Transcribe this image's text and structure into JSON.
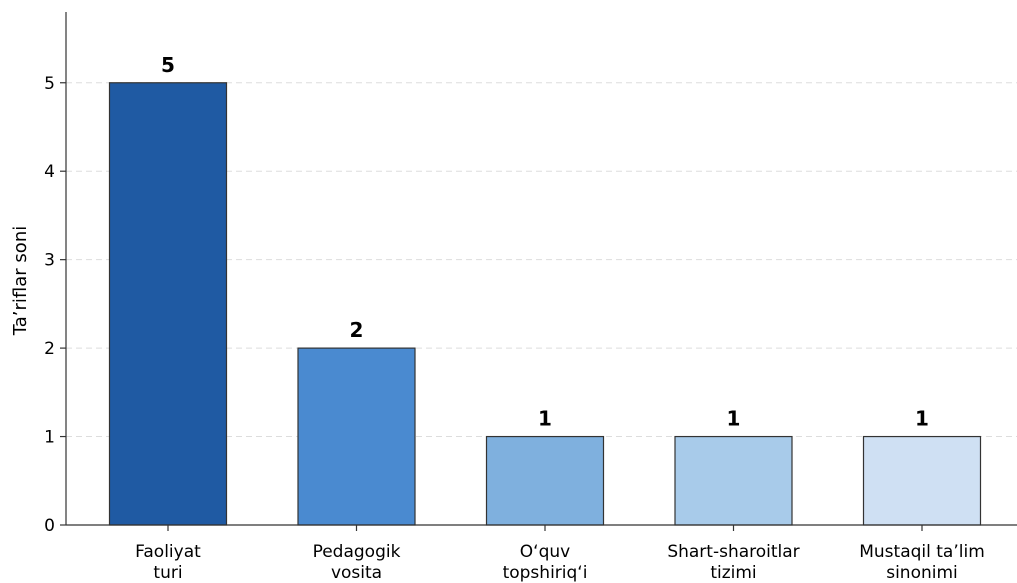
{
  "chart_data": {
    "type": "bar",
    "categories": [
      [
        "Faoliyat",
        "turi"
      ],
      [
        "Pedagogik",
        "vosita"
      ],
      [
        "O‘quv",
        "topshiriq‘i"
      ],
      [
        "Shart-sharoitlar",
        "tizimi"
      ],
      [
        "Mustaqil ta’lim",
        "sinonimi"
      ]
    ],
    "values": [
      5,
      2,
      1,
      1,
      1
    ],
    "data_labels": [
      "5",
      "2",
      "1",
      "1",
      "1"
    ],
    "colors": [
      "#1f5aa3",
      "#4a8ad0",
      "#7fb0de",
      "#a8cbea",
      "#cfe0f3"
    ],
    "title": "",
    "xlabel": "",
    "ylabel": "Ta’riflar soni",
    "ylim": [
      0,
      5.8
    ],
    "yticks": [
      0,
      1,
      2,
      3,
      4,
      5
    ],
    "grid": "horizontal dashed",
    "legend": "none"
  }
}
